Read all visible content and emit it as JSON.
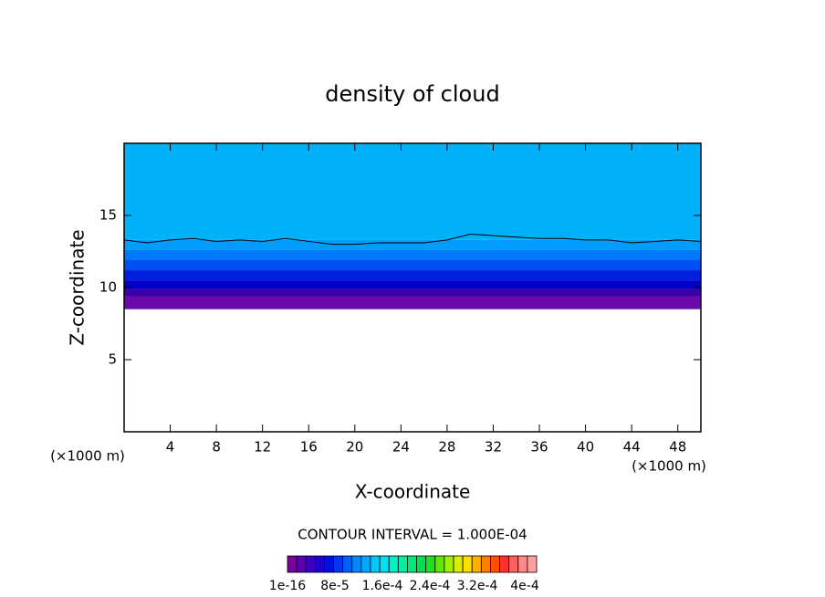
{
  "chart_data": {
    "type": "contour",
    "title": "density of cloud",
    "x_label": "X-coordinate",
    "y_label": "Z-coordinate",
    "x_unit": "(×1000 m)",
    "xlim": [
      0,
      50
    ],
    "xticks": [
      4,
      8,
      12,
      16,
      20,
      24,
      28,
      32,
      36,
      40,
      44,
      48
    ],
    "ylim": [
      0,
      20
    ],
    "yticks": [
      5,
      10,
      15
    ],
    "layers": {
      "colors": [
        "#6a0aa8",
        "#3a00a8",
        "#0000c8",
        "#0020e0",
        "#0050f0",
        "#0078f8",
        "#009cff",
        "#00b0f8"
      ],
      "bottoms": [
        8.5,
        9.4,
        9.9,
        10.5,
        11.2,
        11.9,
        12.6,
        13.3
      ],
      "tops": [
        9.4,
        9.9,
        10.5,
        11.2,
        11.9,
        12.6,
        13.3,
        20
      ]
    },
    "contour_line": {
      "color": "#000000",
      "x": [
        0,
        2,
        4,
        6,
        8,
        10,
        12,
        14,
        16,
        18,
        20,
        22,
        24,
        26,
        28,
        30,
        32,
        34,
        36,
        38,
        40,
        42,
        44,
        46,
        48,
        50
      ],
      "y": [
        13.3,
        13.1,
        13.3,
        13.4,
        13.2,
        13.3,
        13.2,
        13.4,
        13.2,
        13.0,
        13.0,
        13.1,
        13.1,
        13.1,
        13.3,
        13.7,
        13.6,
        13.5,
        13.4,
        13.4,
        13.3,
        13.3,
        13.1,
        13.2,
        13.3,
        13.2
      ]
    },
    "contour_interval": "CONTOUR INTERVAL = 1.000E-04",
    "colorbar": {
      "clim": [
        0,
        0.00042
      ],
      "colors": [
        "#7a00a0",
        "#5a00b0",
        "#3c00c0",
        "#1e00d0",
        "#0010e0",
        "#0038f0",
        "#0060f8",
        "#0088ff",
        "#00a8ff",
        "#00c8ff",
        "#00e0f0",
        "#00f0c8",
        "#00f0a0",
        "#00e878",
        "#00e050",
        "#20e020",
        "#60e800",
        "#a0f000",
        "#d8f000",
        "#ffe000",
        "#ffb000",
        "#ff8000",
        "#ff5000",
        "#ff3030",
        "#ff6060",
        "#ff8888",
        "#ffa0a0"
      ],
      "ticks": [
        {
          "value": 1e-16,
          "label": "1e-16"
        },
        {
          "value": 8e-05,
          "label": "8e-5"
        },
        {
          "value": 0.00016,
          "label": "1.6e-4"
        },
        {
          "value": 0.00024,
          "label": "2.4e-4"
        },
        {
          "value": 0.00032,
          "label": "3.2e-4"
        },
        {
          "value": 0.0004,
          "label": "4e-4"
        }
      ]
    }
  }
}
